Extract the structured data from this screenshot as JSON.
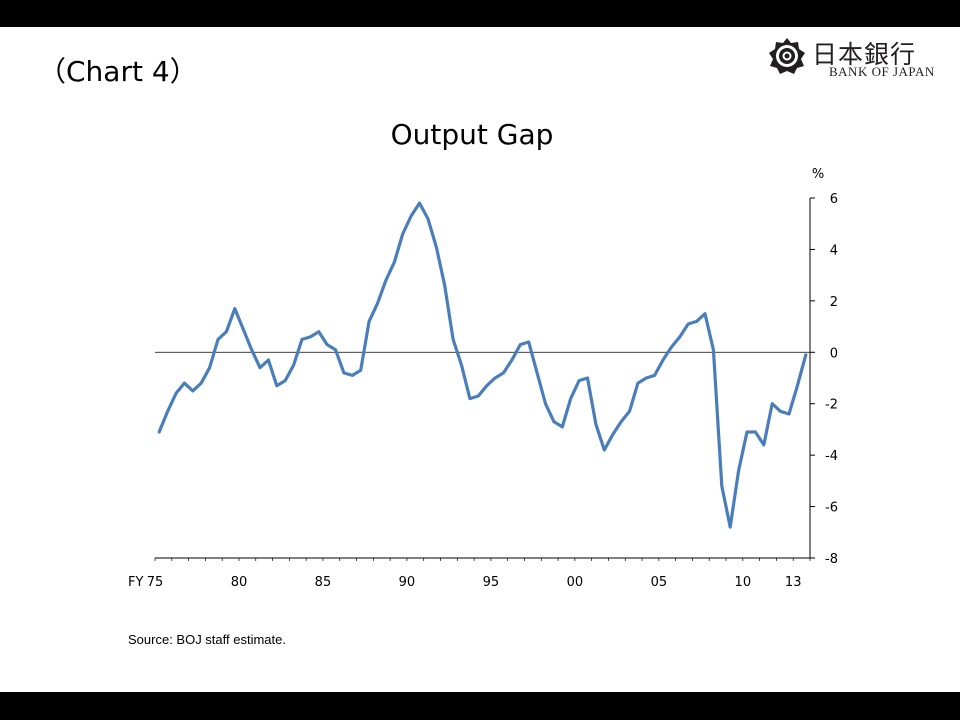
{
  "header": {
    "chart_label": "（Chart 4）",
    "logo_kanji": "日本銀行",
    "logo_english": "BANK OF JAPAN"
  },
  "footer": {
    "source": "Source: BOJ staff estimate."
  },
  "colors": {
    "line": "#4a7ebb",
    "background": "#ffffff",
    "frame": "#000000",
    "logo": "#231f20"
  },
  "chart_data": {
    "type": "line",
    "title": "Output Gap",
    "ylabel": "%",
    "xlabel": "",
    "x_axis_prefix": "FY",
    "ylim": [
      -8,
      6
    ],
    "yticks": [
      6,
      4,
      2,
      0,
      -2,
      -4,
      -6,
      -8
    ],
    "xlim": [
      1975,
      2014
    ],
    "xtick_years": [
      1975,
      1980,
      1985,
      1990,
      1995,
      2000,
      2005,
      2010,
      2013
    ],
    "xtick_labels": [
      "75",
      "80",
      "85",
      "90",
      "95",
      "00",
      "05",
      "10",
      "13"
    ],
    "y_axis_side": "right",
    "grid": false,
    "legend": "none",
    "series": [
      {
        "x": [
          1975.25,
          1975.75,
          1976.25,
          1976.75,
          1977.25,
          1977.75,
          1978.25,
          1978.75,
          1979.25,
          1979.75,
          1980.25,
          1980.75,
          1981.25,
          1981.75,
          1982.25,
          1982.75,
          1983.25,
          1983.75,
          1984.25,
          1984.75,
          1985.25,
          1985.75,
          1986.25,
          1986.75,
          1987.25,
          1987.75,
          1988.25,
          1988.75,
          1989.25,
          1989.75,
          1990.25,
          1990.75,
          1991.25,
          1991.75,
          1992.25,
          1992.75,
          1993.25,
          1993.75,
          1994.25,
          1994.75,
          1995.25,
          1995.75,
          1996.25,
          1996.75,
          1997.25,
          1997.75,
          1998.25,
          1998.75,
          1999.25,
          1999.75,
          2000.25,
          2000.75,
          2001.25,
          2001.75,
          2002.25,
          2002.75,
          2003.25,
          2003.75,
          2004.25,
          2004.75,
          2005.25,
          2005.75,
          2006.25,
          2006.75,
          2007.25,
          2007.75,
          2008.25,
          2008.75,
          2009.25,
          2009.75,
          2010.25,
          2010.75,
          2011.25,
          2011.75,
          2012.25,
          2012.75,
          2013.25,
          2013.75
        ],
        "values": [
          -3.1,
          -2.3,
          -1.6,
          -1.2,
          -1.5,
          -1.2,
          -0.6,
          0.5,
          0.8,
          1.7,
          0.9,
          0.1,
          -0.6,
          -0.3,
          -1.3,
          -1.1,
          -0.5,
          0.5,
          0.6,
          0.8,
          0.3,
          0.1,
          -0.8,
          -0.9,
          -0.7,
          1.2,
          1.9,
          2.8,
          3.5,
          4.6,
          5.3,
          5.8,
          5.2,
          4.1,
          2.6,
          0.5,
          -0.5,
          -1.8,
          -1.7,
          -1.3,
          -1.0,
          -0.8,
          -0.3,
          0.3,
          0.4,
          -0.8,
          -2.0,
          -2.7,
          -2.9,
          -1.8,
          -1.1,
          -1.0,
          -2.8,
          -3.8,
          -3.2,
          -2.7,
          -2.3,
          -1.2,
          -1.0,
          -0.9,
          -0.3,
          0.2,
          0.6,
          1.1,
          1.2,
          1.5,
          0.1,
          -5.2,
          -6.8,
          -4.6,
          -3.1,
          -3.1,
          -3.6,
          -2.0,
          -2.3,
          -2.4,
          -1.3,
          -0.1
        ]
      }
    ]
  }
}
